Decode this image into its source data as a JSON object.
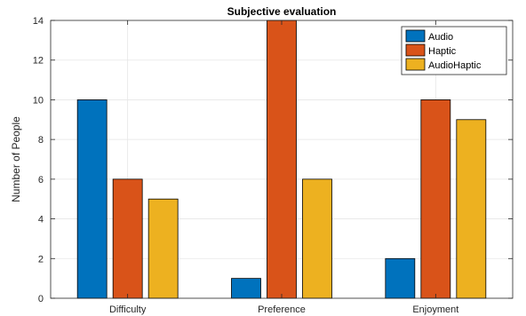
{
  "chart_data": {
    "type": "bar",
    "title": "Subjective evaluation",
    "xlabel": "",
    "ylabel": "Number of People",
    "categories": [
      "Difficulty",
      "Preference",
      "Enjoyment"
    ],
    "ylim": [
      0,
      14
    ],
    "yticks": [
      0,
      2,
      4,
      6,
      8,
      10,
      12,
      14
    ],
    "grid": true,
    "legend_position": "top-right",
    "series": [
      {
        "name": "Audio",
        "color": "#0072BD",
        "values": [
          10,
          1,
          2
        ]
      },
      {
        "name": "Haptic",
        "color": "#D95319",
        "values": [
          6,
          14,
          10
        ]
      },
      {
        "name": "AudioHaptic",
        "color": "#EDB120",
        "values": [
          5,
          6,
          9
        ]
      }
    ]
  }
}
